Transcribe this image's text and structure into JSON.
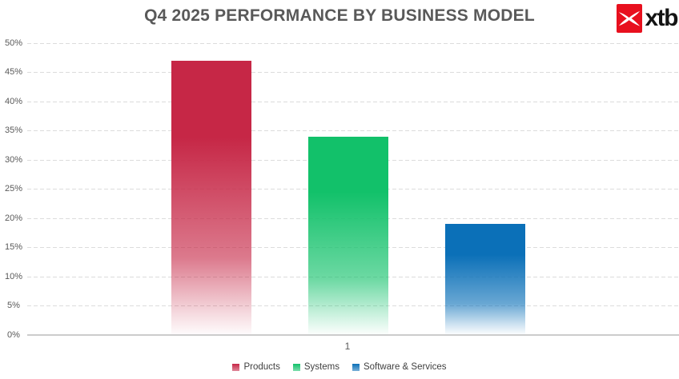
{
  "header": {
    "title": "Q4 2025 PERFORMANCE BY BUSINESS MODEL",
    "logo_text": "xtb",
    "logo_red": "#e8101e"
  },
  "chart_data": {
    "type": "bar",
    "title": "Q4 2025 PERFORMANCE BY BUSINESS MODEL",
    "categories": [
      "1"
    ],
    "series": [
      {
        "name": "Products",
        "values": [
          47
        ],
        "color": "#c62746"
      },
      {
        "name": "Systems",
        "values": [
          34
        ],
        "color": "#12c16a"
      },
      {
        "name": "Software & Services",
        "values": [
          19
        ],
        "color": "#0b70b8"
      }
    ],
    "xlabel": "",
    "ylabel": "",
    "ylim": [
      0,
      50
    ],
    "ytick_step": 5,
    "ytick_labels_top_to_bottom": [
      "50%",
      "45%",
      "40%",
      "35%",
      "30%",
      "25%",
      "20%",
      "15%",
      "10%",
      "5%",
      "0%"
    ],
    "grid": "horizontal-dashed",
    "legend_position": "bottom",
    "bar_style": "gradient-fade-to-white-at-base"
  }
}
